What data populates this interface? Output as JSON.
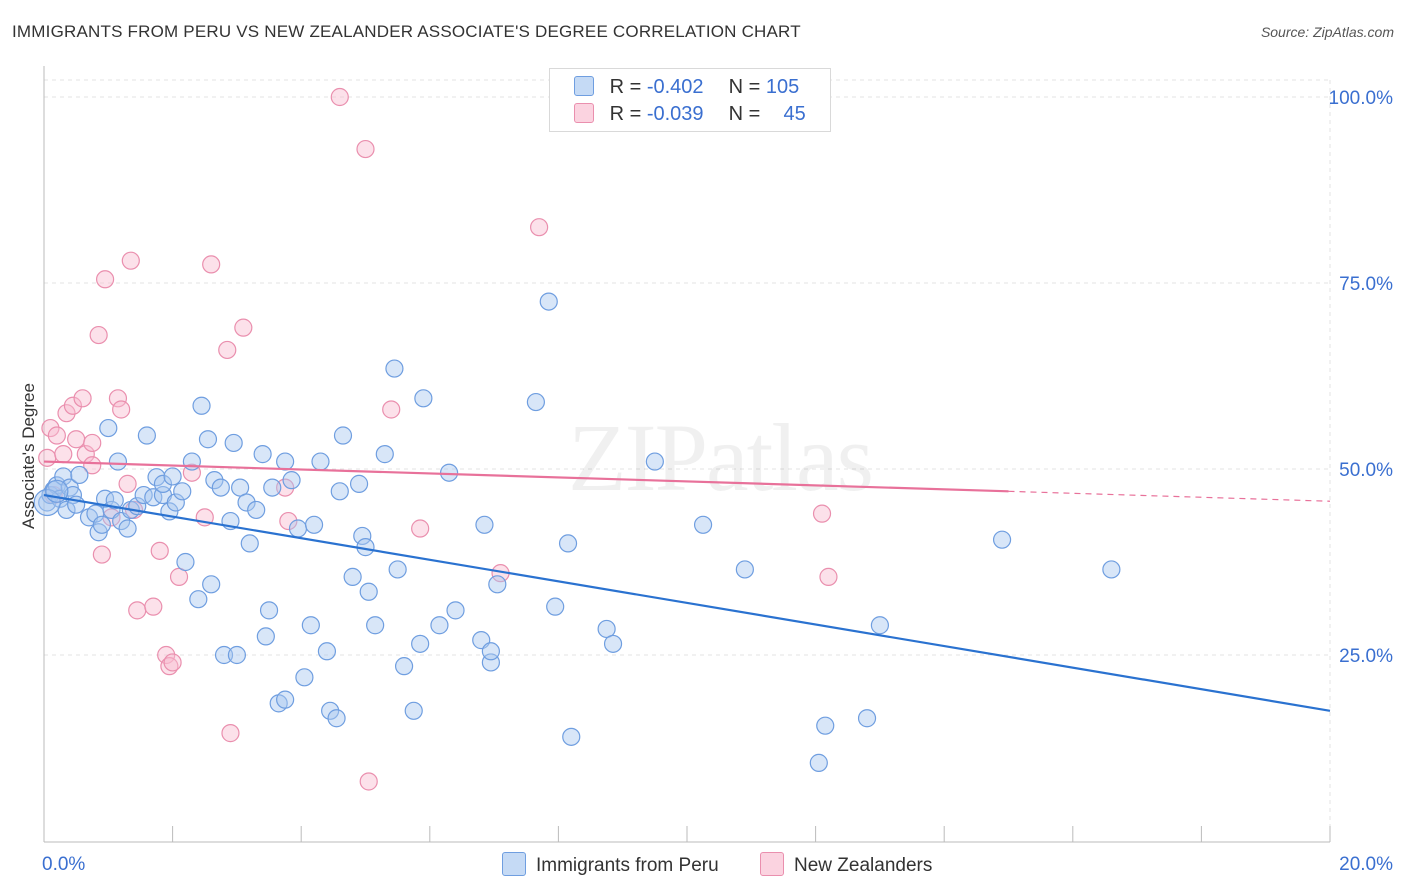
{
  "title": "IMMIGRANTS FROM PERU VS NEW ZEALANDER ASSOCIATE'S DEGREE CORRELATION CHART",
  "source": "Source: ZipAtlas.com",
  "watermark": "ZIPatlas",
  "legend_stats": [
    {
      "r_label": "R =",
      "r_value": "-0.402",
      "n_label": "N =",
      "n_value": "105"
    },
    {
      "r_label": "R =",
      "r_value": "-0.039",
      "n_label": "N =",
      "n_value": "45"
    }
  ],
  "colors": {
    "blue_fill": "#a8c8f0",
    "blue_stroke": "#6f9ee0",
    "blue_line": "#2a72d0",
    "pink_fill": "#f8bcd0",
    "pink_stroke": "#ea8fae",
    "pink_line": "#e8719a",
    "axis_text": "#3a6fd0",
    "grid": "#e3e3e3"
  },
  "chart_data": {
    "type": "scatter",
    "xlabel": "",
    "ylabel": "Associate's Degree",
    "xlim": [
      0,
      20
    ],
    "ylim": [
      0,
      100
    ],
    "x_tick_labels": [
      {
        "value": 0,
        "label": "0.0%"
      },
      {
        "value": 20,
        "label": "20.0%"
      }
    ],
    "y_tick_labels": [
      {
        "value": 25,
        "label": "25.0%"
      },
      {
        "value": 50,
        "label": "50.0%"
      },
      {
        "value": 75,
        "label": "75.0%"
      },
      {
        "value": 100,
        "label": "100.0%"
      }
    ],
    "grid": true,
    "series": [
      {
        "name": "Immigrants from Peru",
        "trend": {
          "x": [
            0,
            20
          ],
          "y": [
            46.5,
            17.5
          ]
        },
        "points": [
          [
            0.05,
            45.5
          ],
          [
            0.1,
            46.5
          ],
          [
            0.15,
            47.2
          ],
          [
            0.2,
            47.8
          ],
          [
            0.25,
            46.0
          ],
          [
            0.3,
            49.0
          ],
          [
            0.35,
            44.5
          ],
          [
            0.4,
            47.5
          ],
          [
            0.45,
            46.5
          ],
          [
            0.5,
            45.2
          ],
          [
            0.55,
            49.2
          ],
          [
            0.7,
            43.5
          ],
          [
            0.8,
            44.0
          ],
          [
            0.85,
            41.5
          ],
          [
            0.9,
            42.5
          ],
          [
            0.95,
            46.0
          ],
          [
            1.0,
            55.5
          ],
          [
            1.05,
            44.5
          ],
          [
            1.1,
            45.8
          ],
          [
            1.15,
            51.0
          ],
          [
            1.2,
            43.0
          ],
          [
            1.3,
            42.0
          ],
          [
            1.35,
            44.5
          ],
          [
            1.45,
            45.0
          ],
          [
            1.55,
            46.5
          ],
          [
            1.6,
            54.5
          ],
          [
            1.7,
            46.2
          ],
          [
            1.75,
            48.9
          ],
          [
            1.85,
            46.5
          ],
          [
            1.95,
            44.3
          ],
          [
            1.85,
            48.0
          ],
          [
            2.0,
            49.0
          ],
          [
            2.05,
            45.5
          ],
          [
            2.15,
            47.0
          ],
          [
            2.2,
            37.5
          ],
          [
            2.3,
            51.0
          ],
          [
            2.4,
            32.5
          ],
          [
            2.45,
            58.5
          ],
          [
            2.55,
            54.0
          ],
          [
            2.6,
            34.5
          ],
          [
            2.65,
            48.5
          ],
          [
            2.75,
            47.5
          ],
          [
            2.8,
            25.0
          ],
          [
            2.9,
            43.0
          ],
          [
            2.95,
            53.5
          ],
          [
            3.0,
            25.0
          ],
          [
            3.05,
            47.5
          ],
          [
            3.15,
            45.5
          ],
          [
            3.2,
            40.0
          ],
          [
            3.3,
            44.5
          ],
          [
            3.4,
            52.0
          ],
          [
            3.45,
            27.5
          ],
          [
            3.5,
            31.0
          ],
          [
            3.55,
            47.5
          ],
          [
            3.65,
            18.5
          ],
          [
            3.75,
            51.0
          ],
          [
            3.75,
            19.0
          ],
          [
            3.85,
            48.5
          ],
          [
            3.95,
            42.0
          ],
          [
            4.05,
            22.0
          ],
          [
            4.15,
            29.0
          ],
          [
            4.2,
            42.5
          ],
          [
            4.3,
            51.0
          ],
          [
            4.4,
            25.5
          ],
          [
            4.45,
            17.5
          ],
          [
            4.55,
            16.5
          ],
          [
            4.6,
            47.0
          ],
          [
            4.65,
            54.5
          ],
          [
            4.8,
            35.5
          ],
          [
            4.9,
            48.0
          ],
          [
            4.95,
            41.0
          ],
          [
            5.0,
            39.5
          ],
          [
            5.05,
            33.5
          ],
          [
            5.15,
            29.0
          ],
          [
            5.3,
            52.0
          ],
          [
            5.45,
            63.5
          ],
          [
            5.5,
            36.5
          ],
          [
            5.6,
            23.5
          ],
          [
            5.75,
            17.5
          ],
          [
            5.85,
            26.5
          ],
          [
            5.9,
            59.5
          ],
          [
            6.15,
            29.0
          ],
          [
            6.3,
            49.5
          ],
          [
            6.4,
            31.0
          ],
          [
            6.8,
            27.0
          ],
          [
            6.85,
            42.5
          ],
          [
            6.95,
            24.0
          ],
          [
            6.95,
            25.5
          ],
          [
            7.05,
            34.5
          ],
          [
            7.65,
            59.0
          ],
          [
            7.85,
            72.5
          ],
          [
            7.95,
            31.5
          ],
          [
            8.15,
            40.0
          ],
          [
            8.2,
            14.0
          ],
          [
            8.75,
            28.5
          ],
          [
            8.85,
            26.5
          ],
          [
            9.5,
            51.0
          ],
          [
            10.25,
            42.5
          ],
          [
            10.9,
            36.5
          ],
          [
            12.05,
            10.5
          ],
          [
            12.15,
            15.5
          ],
          [
            12.8,
            16.5
          ],
          [
            13.0,
            29.0
          ],
          [
            14.9,
            40.5
          ],
          [
            16.6,
            36.5
          ]
        ]
      },
      {
        "name": "New Zealanders",
        "trend": {
          "x": [
            0,
            15
          ],
          "y": [
            51.0,
            47.0
          ]
        },
        "points": [
          [
            0.05,
            51.5
          ],
          [
            0.1,
            55.5
          ],
          [
            0.15,
            46.5
          ],
          [
            0.2,
            54.5
          ],
          [
            0.3,
            52.0
          ],
          [
            0.35,
            57.5
          ],
          [
            0.45,
            58.5
          ],
          [
            0.5,
            54.0
          ],
          [
            0.6,
            59.5
          ],
          [
            0.65,
            52.0
          ],
          [
            0.75,
            53.5
          ],
          [
            0.75,
            50.5
          ],
          [
            0.85,
            68.0
          ],
          [
            0.9,
            38.5
          ],
          [
            0.95,
            75.5
          ],
          [
            1.05,
            43.5
          ],
          [
            1.15,
            59.5
          ],
          [
            1.2,
            58.0
          ],
          [
            1.3,
            48.0
          ],
          [
            1.35,
            78.0
          ],
          [
            1.4,
            44.5
          ],
          [
            1.45,
            31.0
          ],
          [
            1.7,
            31.5
          ],
          [
            1.8,
            39.0
          ],
          [
            1.9,
            25.0
          ],
          [
            1.95,
            23.5
          ],
          [
            2.0,
            24.0
          ],
          [
            2.1,
            35.5
          ],
          [
            2.3,
            49.5
          ],
          [
            2.5,
            43.5
          ],
          [
            2.6,
            77.5
          ],
          [
            2.85,
            66.0
          ],
          [
            2.9,
            14.5
          ],
          [
            3.1,
            69.0
          ],
          [
            3.75,
            47.5
          ],
          [
            3.8,
            43.0
          ],
          [
            4.6,
            100.0
          ],
          [
            5.0,
            93.0
          ],
          [
            5.05,
            8.0
          ],
          [
            5.4,
            58.0
          ],
          [
            5.85,
            42.0
          ],
          [
            7.1,
            36.0
          ],
          [
            7.7,
            82.5
          ],
          [
            12.1,
            44.0
          ],
          [
            12.2,
            35.5
          ]
        ]
      }
    ]
  },
  "bottom_legend": [
    {
      "label": "Immigrants from Peru"
    },
    {
      "label": "New Zealanders"
    }
  ]
}
